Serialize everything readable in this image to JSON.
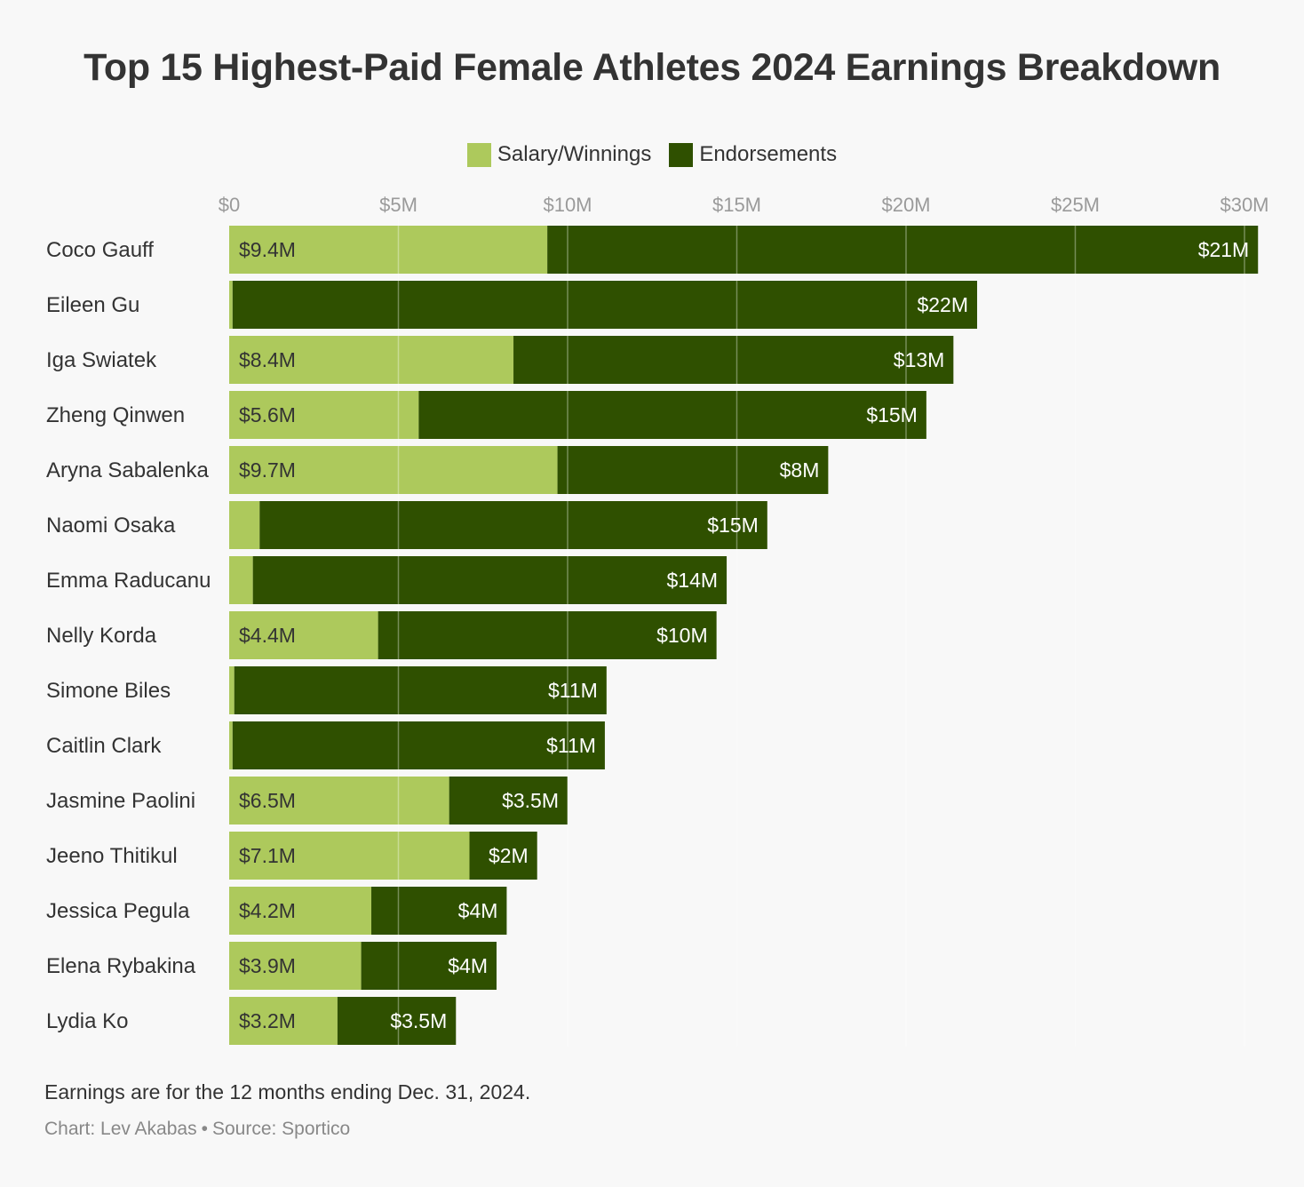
{
  "title": "Top 15 Highest-Paid Female Athletes 2024 Earnings Breakdown",
  "legend": {
    "items": [
      {
        "label": "Salary/Winnings",
        "color": "#adc95c"
      },
      {
        "label": "Endorsements",
        "color": "#2f5000"
      }
    ]
  },
  "chart_data": {
    "type": "bar",
    "orientation": "horizontal",
    "stacked": true,
    "title": "Top 15 Highest-Paid Female Athletes 2024 Earnings Breakdown",
    "categories": [
      "Coco Gauff",
      "Eileen Gu",
      "Iga Swiatek",
      "Zheng Qinwen",
      "Aryna Sabalenka",
      "Naomi Osaka",
      "Emma Raducanu",
      "Nelly Korda",
      "Simone Biles",
      "Caitlin Clark",
      "Jasmine Paolini",
      "Jeeno Thitikul",
      "Jessica Pegula",
      "Elena Rybakina",
      "Lydia Ko"
    ],
    "series": [
      {
        "name": "Salary/Winnings",
        "color": "#adc95c",
        "values": [
          9.4,
          0.1,
          8.4,
          5.6,
          9.7,
          0.9,
          0.7,
          4.4,
          0.15,
          0.1,
          6.5,
          7.1,
          4.2,
          3.9,
          3.2
        ],
        "labels": [
          "$9.4M",
          "",
          "$8.4M",
          "$5.6M",
          "$9.7M",
          "",
          "",
          "$4.4M",
          "",
          "",
          "$6.5M",
          "$7.1M",
          "$4.2M",
          "$3.9M",
          "$3.2M"
        ]
      },
      {
        "name": "Endorsements",
        "color": "#2f5000",
        "values": [
          21,
          22,
          13,
          15,
          8,
          15,
          14,
          10,
          11,
          11,
          3.5,
          2,
          4,
          4,
          3.5
        ],
        "labels": [
          "$21M",
          "$22M",
          "$13M",
          "$15M",
          "$8M",
          "$15M",
          "$14M",
          "$10M",
          "$11M",
          "$11M",
          "$3.5M",
          "$2M",
          "$4M",
          "$4M",
          "$3.5M"
        ]
      }
    ],
    "x_axis": {
      "ticks": [
        0,
        5,
        10,
        15,
        20,
        25,
        30
      ],
      "tick_labels": [
        "$0",
        "$5M",
        "$10M",
        "$15M",
        "$20M",
        "$25M",
        "$30M"
      ],
      "range": [
        0,
        30.5
      ]
    },
    "grid": true,
    "legend_position": "top-center"
  },
  "footnote": "Earnings are for the 12 months ending Dec. 31, 2024.",
  "credit": {
    "chart": "Chart: Lev Akabas",
    "separator": "•",
    "source": "Source: Sportico"
  }
}
